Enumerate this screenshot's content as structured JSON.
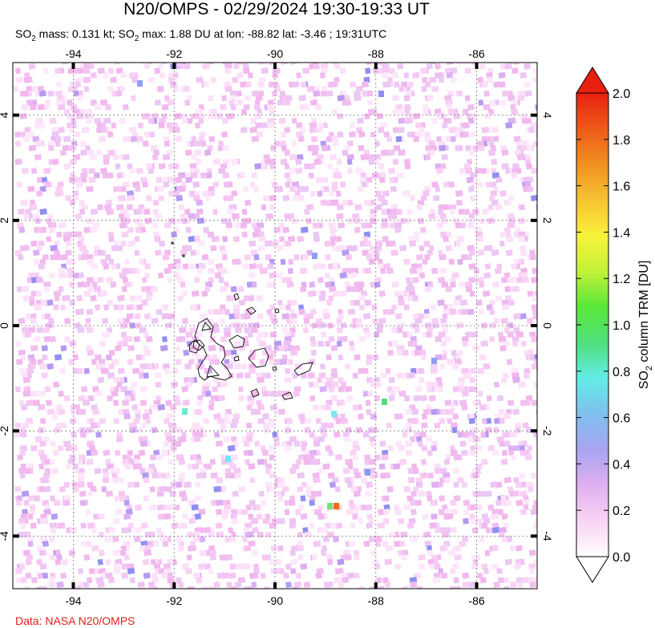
{
  "title": "N20/OMPS - 02/29/2024 19:30-19:33 UT",
  "subtitle": {
    "p1": "SO",
    "p1sub": "2",
    "p2": " mass: 0.131 kt; SO",
    "p2sub": "2",
    "p3": " max: 1.88 DU at lon: -88.82 lat: -3.46 ; 19:31UTC"
  },
  "credit": "Data: NASA N20/OMPS",
  "map": {
    "lon_range": [
      -95.2,
      -84.8
    ],
    "lat_range": [
      -5.0,
      5.0
    ],
    "lon_ticks": [
      "-94",
      "-92",
      "-90",
      "-88",
      "-86"
    ],
    "lat_ticks": [
      "4",
      "2",
      "0",
      "-2",
      "-4"
    ],
    "lon_tick_values": [
      -94,
      -92,
      -90,
      -88,
      -86
    ],
    "lat_tick_values": [
      4,
      2,
      0,
      -2,
      -4
    ],
    "grid": true,
    "max_point": {
      "lon": -88.82,
      "lat": -3.46,
      "value": 1.88
    }
  },
  "colorbar": {
    "label_main": "SO",
    "label_sub": "2",
    "label_rest": " column TRM [DU]",
    "ticks": [
      "0.0",
      "0.2",
      "0.4",
      "0.6",
      "0.8",
      "1.0",
      "1.2",
      "1.4",
      "1.6",
      "1.8",
      "2.0"
    ],
    "range": [
      0.0,
      2.0
    ],
    "colors": [
      "#ffffff",
      "#f9d3f4",
      "#dfb0f0",
      "#a9a4f2",
      "#7fc0ee",
      "#62ece6",
      "#4fe07c",
      "#58e838",
      "#c2f238",
      "#f8f23a",
      "#f7c232",
      "#f29020",
      "#ee5a18",
      "#e82010"
    ]
  }
}
